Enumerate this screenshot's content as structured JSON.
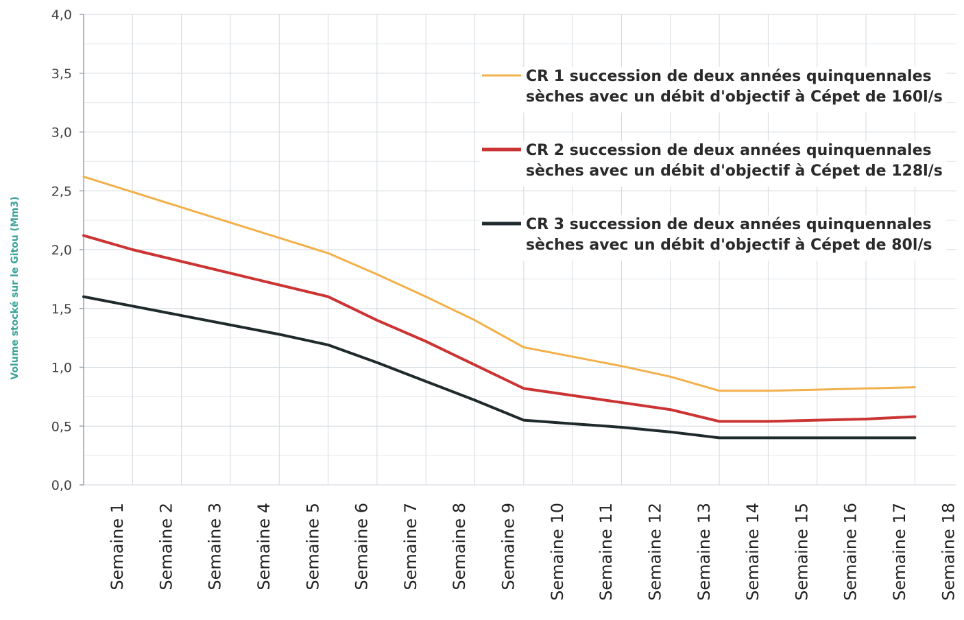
{
  "chart_data": {
    "type": "line",
    "ylabel": "Volume stocké sur le Gitou (Mm3)",
    "ylim": [
      0,
      4
    ],
    "yticks": [
      "0,0",
      "0,5",
      "1,0",
      "1,5",
      "2,0",
      "2,5",
      "3,0",
      "3,5",
      "4,0"
    ],
    "grid": true,
    "legend_position": "top-right",
    "categories": [
      "Semaine 1",
      "Semaine 2",
      "Semaine 3",
      "Semaine 4",
      "Semaine 5",
      "Semaine 6",
      "Semaine 7",
      "Semaine 8",
      "Semaine 9",
      "Semaine 10",
      "Semaine 11",
      "Semaine 12",
      "Semaine 13",
      "Semaine 14",
      "Semaine 15",
      "Semaine 16",
      "Semaine 17",
      "Semaine 18"
    ],
    "series": [
      {
        "name_line1": "CR 1 succession de deux années quinquennales",
        "name_line2": "sèches avec un débit d'objectif à Cépet de 160l/s",
        "color": "#f2b04a",
        "width": 3,
        "values": [
          2.62,
          2.49,
          2.36,
          2.23,
          2.1,
          1.97,
          1.79,
          1.6,
          1.4,
          1.17,
          1.09,
          1.01,
          0.92,
          0.8,
          0.8,
          0.81,
          0.82,
          0.83
        ]
      },
      {
        "name_line1": "CR 2 succession de deux années quinquennales",
        "name_line2": "sèches avec un débit d'objectif à Cépet de 128l/s",
        "color": "#cc3333",
        "width": 4,
        "values": [
          2.12,
          2.0,
          1.9,
          1.8,
          1.7,
          1.6,
          1.4,
          1.22,
          1.02,
          0.82,
          0.76,
          0.7,
          0.64,
          0.54,
          0.54,
          0.55,
          0.56,
          0.58
        ]
      },
      {
        "name_line1": "CR 3 succession de deux années quinquennales",
        "name_line2": "sèches avec un débit d'objectif à Cépet de 80l/s",
        "color": "#1f2a2c",
        "width": 4,
        "values": [
          1.6,
          1.52,
          1.44,
          1.36,
          1.28,
          1.19,
          1.04,
          0.88,
          0.72,
          0.55,
          0.52,
          0.49,
          0.45,
          0.4,
          0.4,
          0.4,
          0.4,
          0.4
        ]
      }
    ]
  }
}
